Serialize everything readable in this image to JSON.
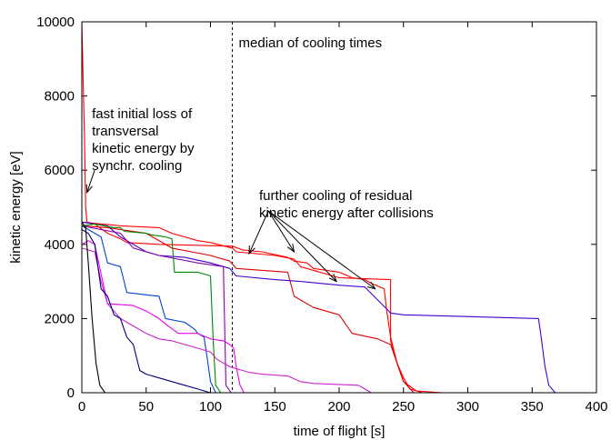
{
  "chart_data": {
    "type": "line",
    "title": "",
    "xlabel": "time of flight [s]",
    "ylabel": "kinetic energy [eV]",
    "xlim": [
      0,
      400
    ],
    "ylim": [
      0,
      10000
    ],
    "x_ticks": [
      0,
      50,
      100,
      150,
      200,
      250,
      300,
      350,
      400
    ],
    "y_ticks": [
      0,
      2000,
      4000,
      6000,
      8000,
      10000
    ],
    "grid": false,
    "legend": "none",
    "median_line": {
      "x": 117,
      "label": "median of cooling times"
    },
    "annotations": [
      {
        "id": "initial",
        "lines": [
          "fast initial loss of",
          "transversal",
          "kinetic energy by",
          "synchr. cooling"
        ],
        "text_at": [
          5,
          7400
        ],
        "arrow_from": [
          10,
          6000
        ],
        "arrow_to": [
          4,
          5400
        ]
      },
      {
        "id": "further",
        "lines": [
          "further cooling of residual",
          "kinetic energy after collisions"
        ],
        "text_at": [
          135,
          5200
        ],
        "arrows": [
          {
            "from": [
              145,
              4900
            ],
            "to": [
              130,
              3750
            ]
          },
          {
            "from": [
              145,
              4900
            ],
            "to": [
              165,
              3800
            ]
          },
          {
            "from": [
              145,
              4900
            ],
            "to": [
              198,
              3000
            ]
          },
          {
            "from": [
              145,
              4900
            ],
            "to": [
              228,
              2800
            ]
          }
        ]
      }
    ],
    "series": [
      {
        "color": "#ff0000",
        "points": [
          [
            0,
            10000
          ],
          [
            2,
            7000
          ],
          [
            3,
            5000
          ],
          [
            4,
            4600
          ],
          [
            10,
            4550
          ],
          [
            20,
            4300
          ],
          [
            30,
            4150
          ],
          [
            35,
            4050
          ],
          [
            60,
            4000
          ],
          [
            117,
            3950
          ],
          [
            125,
            3850
          ],
          [
            140,
            3800
          ],
          [
            160,
            3650
          ],
          [
            165,
            3550
          ],
          [
            175,
            3500
          ],
          [
            180,
            3350
          ],
          [
            200,
            3250
          ],
          [
            210,
            3100
          ],
          [
            220,
            3050
          ],
          [
            225,
            2950
          ],
          [
            235,
            2800
          ],
          [
            237,
            2200
          ],
          [
            240,
            1500
          ],
          [
            245,
            800
          ],
          [
            250,
            300
          ],
          [
            260,
            50
          ],
          [
            280,
            0
          ]
        ]
      },
      {
        "color": "#ff0000",
        "points": [
          [
            0,
            4600
          ],
          [
            30,
            4500
          ],
          [
            60,
            4450
          ],
          [
            70,
            4300
          ],
          [
            80,
            4200
          ],
          [
            90,
            4100
          ],
          [
            100,
            4050
          ],
          [
            117,
            3900
          ],
          [
            120,
            3800
          ],
          [
            150,
            3700
          ],
          [
            165,
            3600
          ],
          [
            170,
            3400
          ],
          [
            200,
            3100
          ],
          [
            240,
            3050
          ],
          [
            240,
            1400
          ],
          [
            245,
            800
          ],
          [
            250,
            400
          ],
          [
            255,
            100
          ],
          [
            265,
            0
          ]
        ]
      },
      {
        "color": "#dd0000",
        "points": [
          [
            0,
            4500
          ],
          [
            20,
            4450
          ],
          [
            50,
            4300
          ],
          [
            70,
            3900
          ],
          [
            100,
            3700
          ],
          [
            115,
            3550
          ],
          [
            120,
            3350
          ],
          [
            160,
            3250
          ],
          [
            165,
            2600
          ],
          [
            180,
            2300
          ],
          [
            200,
            2100
          ],
          [
            210,
            1600
          ],
          [
            230,
            1450
          ],
          [
            240,
            1300
          ],
          [
            245,
            800
          ],
          [
            250,
            300
          ],
          [
            258,
            0
          ]
        ]
      },
      {
        "color": "#4400cc",
        "points": [
          [
            0,
            4600
          ],
          [
            20,
            4500
          ],
          [
            30,
            4200
          ],
          [
            40,
            4000
          ],
          [
            50,
            3800
          ],
          [
            60,
            3700
          ],
          [
            80,
            3650
          ],
          [
            100,
            3500
          ],
          [
            115,
            3350
          ],
          [
            120,
            3150
          ],
          [
            150,
            3050
          ],
          [
            170,
            3000
          ],
          [
            200,
            2900
          ],
          [
            220,
            2850
          ],
          [
            240,
            2150
          ],
          [
            250,
            2100
          ],
          [
            355,
            2000
          ],
          [
            357,
            1500
          ],
          [
            360,
            700
          ],
          [
            363,
            200
          ],
          [
            368,
            0
          ]
        ]
      },
      {
        "color": "#8800aa",
        "points": [
          [
            0,
            4500
          ],
          [
            30,
            4300
          ],
          [
            40,
            3900
          ],
          [
            60,
            3700
          ],
          [
            90,
            3500
          ],
          [
            110,
            3400
          ],
          [
            112,
            200
          ],
          [
            116,
            0
          ]
        ]
      },
      {
        "color": "#0044cc",
        "points": [
          [
            0,
            4500
          ],
          [
            10,
            4300
          ],
          [
            15,
            4200
          ],
          [
            20,
            3500
          ],
          [
            30,
            3400
          ],
          [
            35,
            2700
          ],
          [
            60,
            2600
          ],
          [
            65,
            2000
          ],
          [
            80,
            1900
          ],
          [
            88,
            1700
          ],
          [
            90,
            1600
          ],
          [
            95,
            1500
          ],
          [
            98,
            800
          ],
          [
            100,
            300
          ],
          [
            104,
            0
          ]
        ]
      },
      {
        "color": "#008800",
        "points": [
          [
            0,
            4500
          ],
          [
            10,
            4550
          ],
          [
            25,
            4450
          ],
          [
            30,
            4450
          ],
          [
            33,
            4350
          ],
          [
            50,
            4300
          ],
          [
            55,
            4250
          ],
          [
            65,
            4200
          ],
          [
            70,
            4150
          ],
          [
            72,
            3250
          ],
          [
            90,
            3250
          ],
          [
            95,
            3200
          ],
          [
            100,
            3150
          ],
          [
            102,
            1500
          ],
          [
            104,
            200
          ],
          [
            108,
            0
          ]
        ]
      },
      {
        "color": "#ee00ee",
        "points": [
          [
            0,
            4000
          ],
          [
            5,
            4100
          ],
          [
            10,
            4000
          ],
          [
            15,
            3200
          ],
          [
            20,
            2400
          ],
          [
            40,
            2350
          ],
          [
            50,
            2200
          ],
          [
            60,
            2000
          ],
          [
            67,
            1800
          ],
          [
            75,
            1600
          ],
          [
            90,
            1600
          ],
          [
            100,
            1450
          ],
          [
            110,
            1400
          ],
          [
            115,
            1300
          ],
          [
            118,
            1200
          ],
          [
            120,
            700
          ],
          [
            123,
            200
          ],
          [
            126,
            0
          ]
        ]
      },
      {
        "color": "#cc22cc",
        "points": [
          [
            0,
            3900
          ],
          [
            10,
            3800
          ],
          [
            15,
            3000
          ],
          [
            20,
            2400
          ],
          [
            30,
            2000
          ],
          [
            40,
            1800
          ],
          [
            50,
            1600
          ],
          [
            60,
            1450
          ],
          [
            70,
            1400
          ],
          [
            80,
            1300
          ],
          [
            90,
            1200
          ],
          [
            100,
            1100
          ],
          [
            105,
            900
          ],
          [
            110,
            800
          ],
          [
            115,
            700
          ],
          [
            125,
            600
          ],
          [
            130,
            550
          ],
          [
            140,
            500
          ],
          [
            160,
            450
          ],
          [
            170,
            300
          ],
          [
            180,
            250
          ],
          [
            215,
            200
          ],
          [
            220,
            100
          ],
          [
            225,
            0
          ]
        ]
      },
      {
        "color": "#000077",
        "points": [
          [
            0,
            4400
          ],
          [
            5,
            4300
          ],
          [
            10,
            4000
          ],
          [
            15,
            2800
          ],
          [
            20,
            2600
          ],
          [
            25,
            2100
          ],
          [
            30,
            2000
          ],
          [
            35,
            1500
          ],
          [
            40,
            1300
          ],
          [
            45,
            600
          ],
          [
            50,
            500
          ],
          [
            60,
            400
          ],
          [
            70,
            300
          ],
          [
            80,
            200
          ],
          [
            90,
            100
          ],
          [
            95,
            50
          ],
          [
            100,
            0
          ]
        ]
      },
      {
        "color": "#000000",
        "points": [
          [
            0,
            4600
          ],
          [
            3,
            4450
          ],
          [
            5,
            3500
          ],
          [
            8,
            2000
          ],
          [
            11,
            800
          ],
          [
            14,
            200
          ],
          [
            18,
            0
          ]
        ]
      }
    ]
  }
}
